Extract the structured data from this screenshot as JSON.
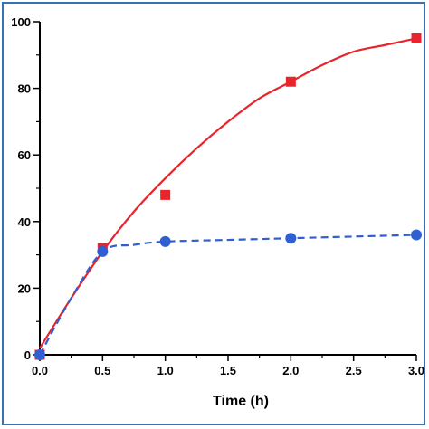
{
  "chart_data": {
    "type": "line",
    "title": "",
    "xlabel": "Time (h)",
    "ylabel": "",
    "xlim": [
      0,
      3.0
    ],
    "ylim": [
      0,
      100
    ],
    "x_ticks": [
      0.0,
      0.5,
      1.0,
      1.5,
      2.0,
      2.5,
      3.0
    ],
    "x_tick_labels": [
      "0.0",
      "0.5",
      "1.0",
      "1.5",
      "2.0",
      "2.5",
      "3.0"
    ],
    "y_ticks": [
      0,
      20,
      40,
      60,
      80,
      100
    ],
    "y_tick_labels": [
      "0",
      "20",
      "40",
      "60",
      "80",
      "100"
    ],
    "grid": false,
    "legend": "none",
    "series": [
      {
        "color": "#e8242c",
        "marker": "square",
        "line_style": "solid",
        "x": [
          0.0,
          0.5,
          1.0,
          2.0,
          3.0
        ],
        "values": [
          0,
          32,
          48,
          82,
          95
        ],
        "fit_x": [
          0.0,
          0.25,
          0.5,
          0.75,
          1.0,
          1.25,
          1.5,
          1.75,
          2.0,
          2.25,
          2.5,
          2.75,
          3.0
        ],
        "fit_values": [
          2,
          17,
          31,
          43,
          53,
          62,
          70,
          77,
          82,
          87,
          91,
          93,
          95
        ]
      },
      {
        "color": "#2f5fd0",
        "marker": "circle",
        "line_style": "dashed",
        "x": [
          0.0,
          0.5,
          1.0,
          2.0,
          3.0
        ],
        "values": [
          0,
          31,
          34,
          35,
          36
        ],
        "fit_x": [
          0.0,
          0.25,
          0.5,
          0.75,
          1.0,
          1.5,
          2.0,
          2.5,
          3.0
        ],
        "fit_values": [
          0,
          17,
          31,
          33,
          34,
          34.5,
          35,
          35.5,
          36
        ]
      }
    ]
  }
}
